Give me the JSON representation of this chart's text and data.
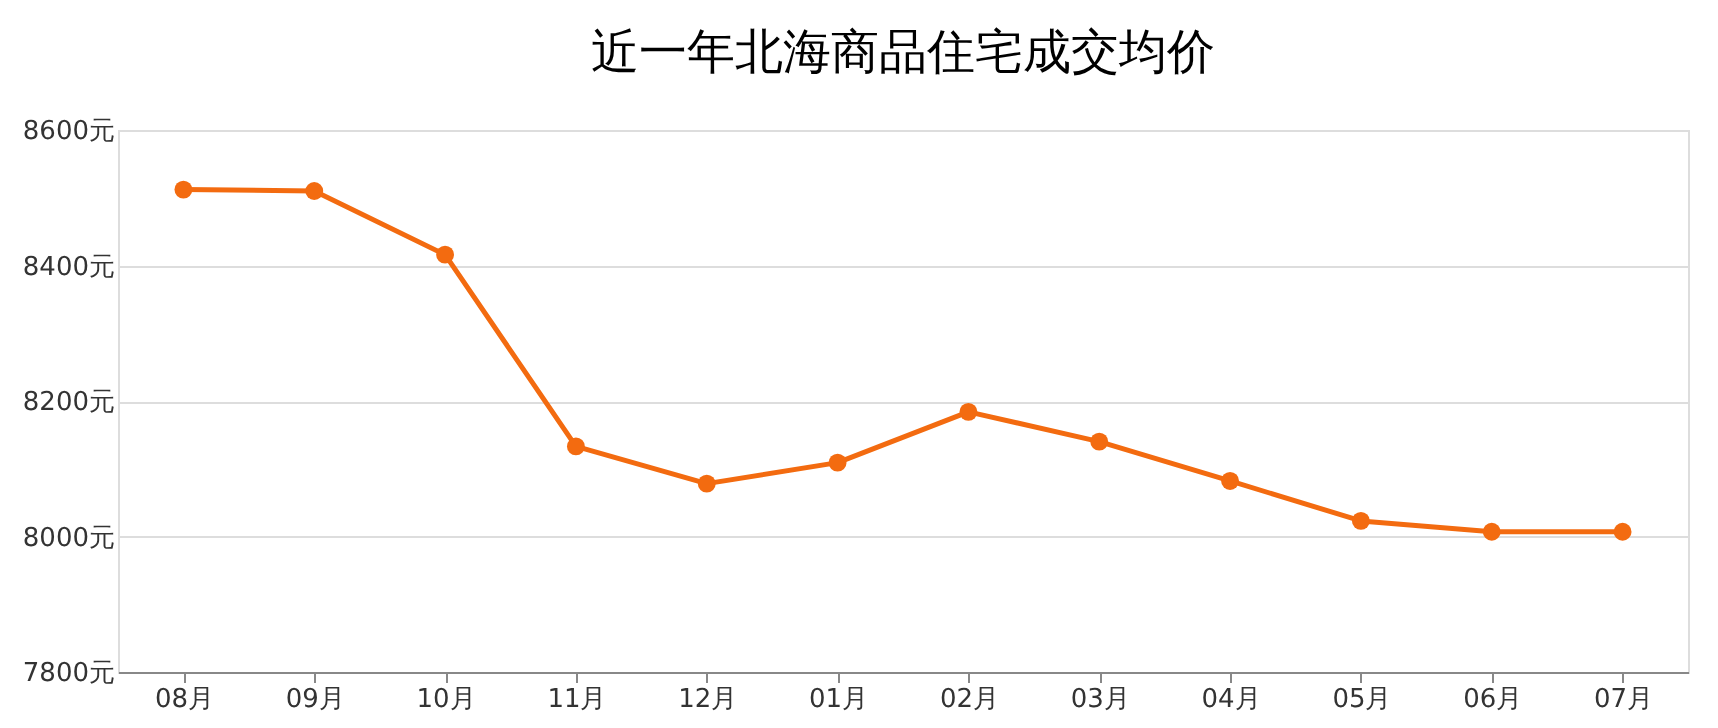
{
  "chart_data": {
    "type": "line",
    "title": "近一年北海商品住宅成交均价",
    "categories": [
      "08月",
      "09月",
      "10月",
      "11月",
      "12月",
      "01月",
      "02月",
      "03月",
      "04月",
      "05月",
      "06月",
      "07月"
    ],
    "series": [
      {
        "color": "#f36b10",
        "values": [
          8512,
          8510,
          8416,
          8133,
          8078,
          8109,
          8184,
          8140,
          8082,
          8023,
          8007,
          8007
        ]
      }
    ],
    "ylim": [
      7800,
      8600
    ],
    "yticks": [
      {
        "value": 7800,
        "label": "7800元"
      },
      {
        "value": 8000,
        "label": "8000元"
      },
      {
        "value": 8200,
        "label": "8200元"
      },
      {
        "value": 8400,
        "label": "8400元"
      },
      {
        "value": 8600,
        "label": "8600元"
      }
    ],
    "grid": "y",
    "marker": "circle",
    "line_style": "solid"
  }
}
